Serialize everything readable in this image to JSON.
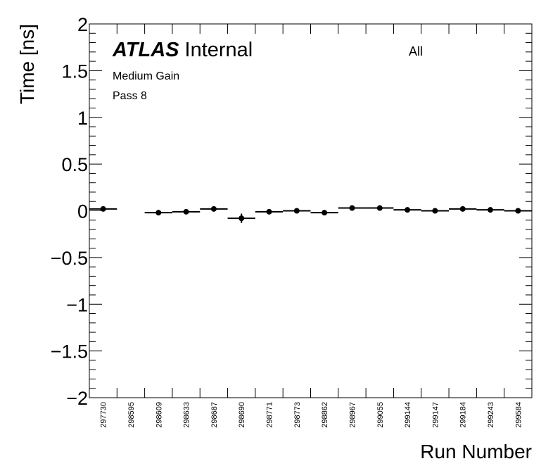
{
  "chart_data": {
    "type": "scatter",
    "title": "",
    "xlabel": "Run Number",
    "ylabel": "Time [ns]",
    "ylim": [
      -2,
      2
    ],
    "yticks": [
      {
        "value": 2,
        "label": "2"
      },
      {
        "value": 1.5,
        "label": "1.5"
      },
      {
        "value": 1,
        "label": "1"
      },
      {
        "value": 0.5,
        "label": "0.5"
      },
      {
        "value": 0,
        "label": "0"
      },
      {
        "value": -0.5,
        "label": "−0.5"
      },
      {
        "value": -1,
        "label": "−1"
      },
      {
        "value": -1.5,
        "label": "−1.5"
      },
      {
        "value": -2,
        "label": "−2"
      }
    ],
    "categories": [
      "297730",
      "298595",
      "298609",
      "298633",
      "298687",
      "298690",
      "298771",
      "298773",
      "298862",
      "298967",
      "299055",
      "299144",
      "299147",
      "299184",
      "299243",
      "299584"
    ],
    "values": [
      0.02,
      null,
      -0.02,
      -0.01,
      0.02,
      -0.08,
      -0.01,
      0.0,
      -0.02,
      0.03,
      0.03,
      0.01,
      0.0,
      0.02,
      0.01,
      0.0
    ],
    "errors": [
      0.01,
      null,
      0.01,
      0.01,
      0.01,
      0.05,
      0.01,
      0.01,
      0.01,
      0.01,
      0.01,
      0.01,
      0.01,
      0.01,
      0.01,
      0.01
    ],
    "grid": false,
    "annotations": {
      "atlas": "ATLAS",
      "internal": "Internal",
      "gain": "Medium Gain",
      "pass": "Pass 8",
      "selection": "All"
    }
  }
}
